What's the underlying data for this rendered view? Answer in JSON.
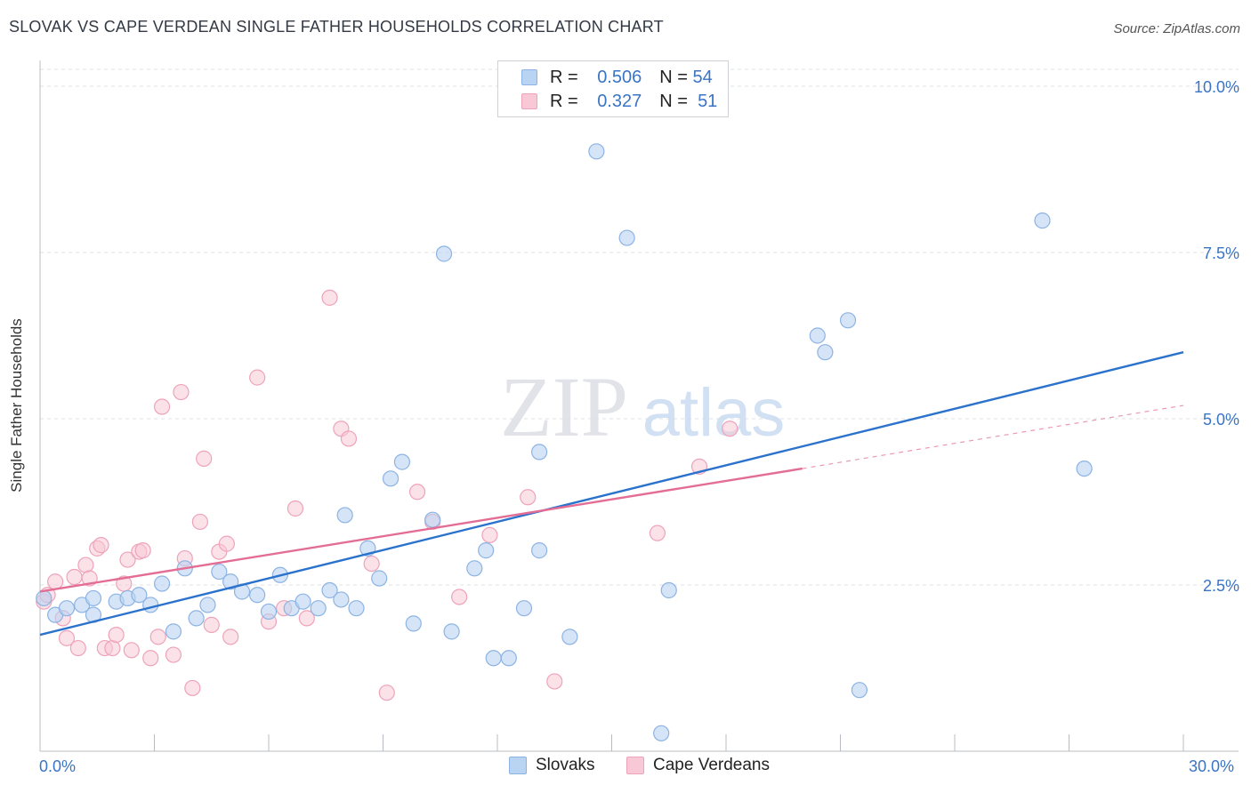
{
  "title": "SLOVAK VS CAPE VERDEAN SINGLE FATHER HOUSEHOLDS CORRELATION CHART",
  "source": "Source: ZipAtlas.com",
  "colors": {
    "blue_fill": "#b9d3f2",
    "blue_stroke": "#8db3e3",
    "blue_line": "#2b72cc",
    "pink_fill": "#f8c8d6",
    "pink_stroke": "#eea3ba",
    "pink_line": "#e36d95",
    "tick_text": "#3a74c4"
  },
  "legend": {
    "rows": [
      {
        "r_label": "R =",
        "r_value": "0.506",
        "n_label": "N =",
        "n_value": "54"
      },
      {
        "r_label": "R =",
        "r_value": "0.327",
        "n_label": "N =",
        "n_value": "51"
      }
    ]
  },
  "bottom_legend": {
    "slovaks": "Slovaks",
    "cape_verdeans": "Cape Verdeans"
  },
  "axis": {
    "x_min_label": "0.0%",
    "x_max_label": "30.0%"
  },
  "watermark": {
    "zip": "ZIP",
    "atlas": "atlas"
  },
  "chart_data": {
    "type": "scatter",
    "title": "SLOVAK VS CAPE VERDEAN SINGLE FATHER HOUSEHOLDS CORRELATION CHART",
    "xlabel": "",
    "ylabel": "Single Father Households",
    "xlim": [
      0,
      30
    ],
    "ylim": [
      0,
      10.5
    ],
    "y_ticks": [
      {
        "value": 2.5,
        "label": "2.5%"
      },
      {
        "value": 5.0,
        "label": "5.0%"
      },
      {
        "value": 7.5,
        "label": "7.5%"
      },
      {
        "value": 10.0,
        "label": "10.0%"
      }
    ],
    "grid": true,
    "series": [
      {
        "name": "Slovaks",
        "r": 0.506,
        "n": 54,
        "trend": {
          "x": [
            0,
            30
          ],
          "y": [
            1.75,
            6.0
          ]
        },
        "points": [
          [
            0.1,
            2.3
          ],
          [
            0.4,
            2.05
          ],
          [
            0.7,
            2.15
          ],
          [
            1.1,
            2.2
          ],
          [
            1.4,
            2.05
          ],
          [
            1.4,
            2.3
          ],
          [
            2.0,
            2.25
          ],
          [
            2.3,
            2.3
          ],
          [
            2.6,
            2.35
          ],
          [
            2.9,
            2.2
          ],
          [
            3.2,
            2.52
          ],
          [
            3.5,
            1.8
          ],
          [
            3.8,
            2.75
          ],
          [
            4.1,
            2.0
          ],
          [
            4.4,
            2.2
          ],
          [
            4.7,
            2.7
          ],
          [
            5.0,
            2.55
          ],
          [
            5.3,
            2.4
          ],
          [
            5.7,
            2.35
          ],
          [
            6.0,
            2.1
          ],
          [
            6.3,
            2.65
          ],
          [
            6.6,
            2.15
          ],
          [
            6.9,
            2.25
          ],
          [
            7.3,
            2.15
          ],
          [
            7.6,
            2.42
          ],
          [
            7.9,
            2.28
          ],
          [
            8.0,
            3.55
          ],
          [
            8.3,
            2.15
          ],
          [
            8.6,
            3.05
          ],
          [
            8.9,
            2.6
          ],
          [
            9.2,
            4.1
          ],
          [
            9.5,
            4.35
          ],
          [
            9.8,
            1.92
          ],
          [
            10.3,
            3.48
          ],
          [
            10.6,
            7.48
          ],
          [
            10.8,
            1.8
          ],
          [
            11.4,
            2.75
          ],
          [
            11.7,
            3.02
          ],
          [
            11.9,
            1.4
          ],
          [
            12.3,
            1.4
          ],
          [
            12.7,
            2.15
          ],
          [
            13.1,
            4.5
          ],
          [
            13.1,
            3.02
          ],
          [
            13.9,
            1.72
          ],
          [
            14.6,
            9.02
          ],
          [
            15.4,
            7.72
          ],
          [
            16.3,
            0.27
          ],
          [
            16.5,
            2.42
          ],
          [
            20.4,
            6.25
          ],
          [
            20.6,
            6.0
          ],
          [
            21.2,
            6.48
          ],
          [
            21.5,
            0.92
          ],
          [
            26.3,
            7.98
          ],
          [
            27.4,
            4.25
          ]
        ]
      },
      {
        "name": "Cape Verdeans",
        "r": 0.327,
        "n": 51,
        "trend": {
          "x": [
            0,
            20
          ],
          "y": [
            2.4,
            4.25
          ]
        },
        "trend_dashed": {
          "x": [
            20,
            30
          ],
          "y": [
            4.25,
            5.2
          ]
        },
        "points": [
          [
            0.1,
            2.25
          ],
          [
            0.2,
            2.35
          ],
          [
            0.4,
            2.55
          ],
          [
            0.6,
            2.0
          ],
          [
            0.7,
            1.7
          ],
          [
            0.9,
            2.62
          ],
          [
            1.0,
            1.55
          ],
          [
            1.2,
            2.8
          ],
          [
            1.3,
            2.6
          ],
          [
            1.5,
            3.05
          ],
          [
            1.6,
            3.1
          ],
          [
            1.7,
            1.55
          ],
          [
            1.9,
            1.55
          ],
          [
            2.0,
            1.75
          ],
          [
            2.2,
            2.52
          ],
          [
            2.3,
            2.88
          ],
          [
            2.4,
            1.52
          ],
          [
            2.6,
            3.0
          ],
          [
            2.7,
            3.02
          ],
          [
            2.9,
            1.4
          ],
          [
            3.1,
            1.72
          ],
          [
            3.2,
            5.18
          ],
          [
            3.5,
            1.45
          ],
          [
            3.7,
            5.4
          ],
          [
            3.8,
            2.9
          ],
          [
            4.0,
            0.95
          ],
          [
            4.2,
            3.45
          ],
          [
            4.3,
            4.4
          ],
          [
            4.5,
            1.9
          ],
          [
            4.7,
            3.0
          ],
          [
            4.9,
            3.12
          ],
          [
            5.0,
            1.72
          ],
          [
            5.7,
            5.62
          ],
          [
            6.0,
            1.95
          ],
          [
            6.4,
            2.15
          ],
          [
            6.7,
            3.65
          ],
          [
            7.0,
            2.0
          ],
          [
            7.6,
            6.82
          ],
          [
            7.9,
            4.85
          ],
          [
            8.1,
            4.7
          ],
          [
            8.7,
            2.82
          ],
          [
            9.1,
            0.88
          ],
          [
            9.9,
            3.9
          ],
          [
            10.3,
            3.45
          ],
          [
            11.0,
            2.32
          ],
          [
            11.8,
            3.25
          ],
          [
            12.8,
            3.82
          ],
          [
            13.5,
            1.05
          ],
          [
            16.2,
            3.28
          ],
          [
            17.3,
            4.28
          ],
          [
            18.1,
            4.85
          ]
        ]
      }
    ]
  }
}
